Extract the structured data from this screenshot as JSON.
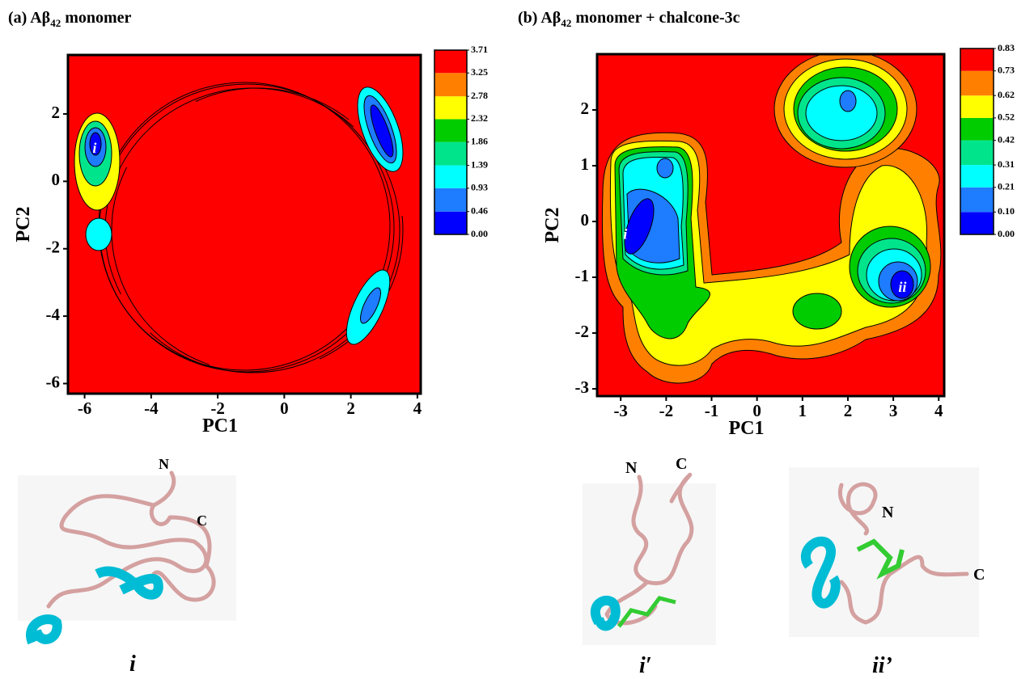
{
  "chart_data": [
    {
      "type": "contour",
      "title": {
        "prefix": "(a) Aβ",
        "subscript": "42",
        "suffix": " monomer"
      },
      "x_label": "PC1",
      "y_label": "PC2",
      "xlim": [
        -6.5,
        4.1
      ],
      "ylim": [
        -6.3,
        3.75
      ],
      "xticks": [
        -6,
        -4,
        -2,
        0,
        2,
        4
      ],
      "yticks": [
        -6,
        -4,
        -2,
        0,
        2
      ],
      "colorbar": {
        "levels": [
          {
            "value": 0,
            "label": "0.00"
          },
          0.46,
          0.93,
          1.39,
          1.86,
          2.32,
          2.78,
          3.25,
          3.71
        ],
        "colors": [
          "#0000ff",
          "#1e7cff",
          "#00ffff",
          "#00e58c",
          "#00cc00",
          "#ffff00",
          "#ff8000",
          "#ff0000"
        ]
      },
      "annotations": [
        {
          "text": "i",
          "x": -5.7,
          "y": 0.95
        }
      ]
    },
    {
      "type": "contour",
      "title": {
        "prefix": "(b) Aβ",
        "subscript": "42",
        "suffix": " monomer + chalcone-3c"
      },
      "x_label": "PC1",
      "y_label": "PC2",
      "xlim": [
        -3.52,
        4.12
      ],
      "ylim": [
        -3.13,
        3.0
      ],
      "xticks": [
        -3,
        -2,
        -1,
        0,
        1,
        2,
        3,
        4
      ],
      "yticks": [
        -3,
        -2,
        -1,
        0,
        1,
        2
      ],
      "colorbar": {
        "levels": [
          {
            "value": 0,
            "label": "0.00"
          },
          {
            "value": 0.1,
            "label": "0.10"
          },
          0.21,
          0.31,
          0.42,
          0.52,
          0.62,
          0.73,
          0.83
        ],
        "colors": [
          "#0000ff",
          "#1e7cff",
          "#00ffff",
          "#00e58c",
          "#00cc00",
          "#ffff00",
          "#ff8000",
          "#ff0000"
        ]
      },
      "annotations": [
        {
          "text": "i",
          "x": -2.9,
          "y": -0.25
        },
        {
          "text": "ii",
          "x": 3.2,
          "y": -1.2
        }
      ]
    }
  ],
  "structures": [
    {
      "caption": "i",
      "termini": [
        "N",
        "C"
      ]
    },
    {
      "caption": "i′",
      "termini": [
        "N",
        "C"
      ]
    },
    {
      "caption": "ii’",
      "termini": [
        "N",
        "C"
      ]
    }
  ]
}
